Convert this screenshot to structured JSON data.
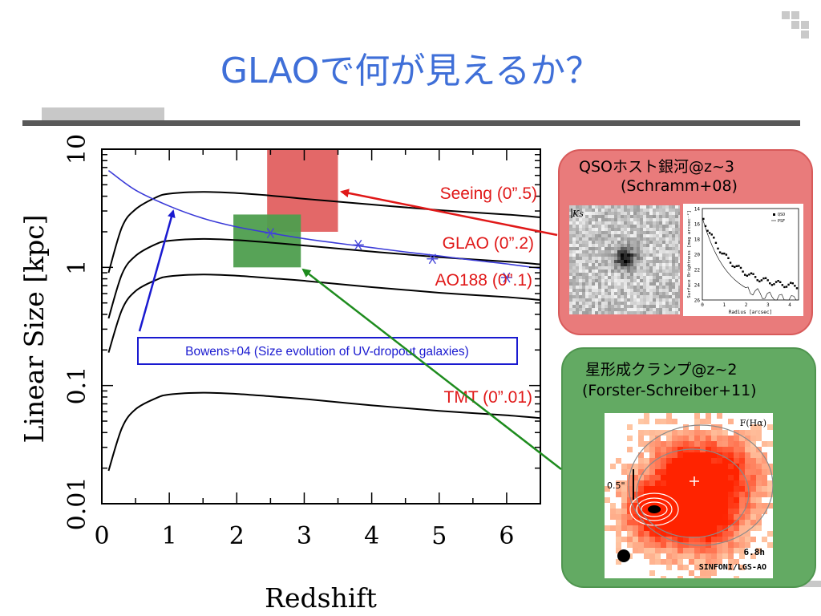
{
  "slide": {
    "title": "GLAOで何が見えるか？"
  },
  "chart_data": {
    "type": "line",
    "xlabel": "Redshift",
    "ylabel": "Linear Size [kpc]",
    "yscale": "log",
    "xlim": [
      0,
      6.5
    ],
    "ylim": [
      0.01,
      10
    ],
    "x_ticks": [
      "0",
      "1",
      "2",
      "3",
      "4",
      "5",
      "6"
    ],
    "y_ticks": [
      "0.01",
      "0.1",
      "1",
      "10"
    ],
    "series": [
      {
        "name": "Seeing (0”.5)",
        "x": [
          0.1,
          0.3,
          0.5,
          0.8,
          1.0,
          1.5,
          2.0,
          2.5,
          3.0,
          4.0,
          5.0,
          6.0,
          6.5
        ],
        "values": [
          0.9,
          2.2,
          3.1,
          3.9,
          4.2,
          4.35,
          4.25,
          4.05,
          3.8,
          3.4,
          3.05,
          2.8,
          2.65
        ]
      },
      {
        "name": "GLAO (0”.2)",
        "x": [
          0.1,
          0.3,
          0.5,
          0.8,
          1.0,
          1.5,
          2.0,
          2.5,
          3.0,
          4.0,
          5.0,
          6.0,
          6.5
        ],
        "values": [
          0.37,
          0.88,
          1.25,
          1.57,
          1.68,
          1.74,
          1.7,
          1.62,
          1.53,
          1.36,
          1.22,
          1.12,
          1.06
        ]
      },
      {
        "name": "AO188 (0”.1)",
        "x": [
          0.1,
          0.3,
          0.5,
          0.8,
          1.0,
          1.5,
          2.0,
          2.5,
          3.0,
          4.0,
          5.0,
          6.0,
          6.5
        ],
        "values": [
          0.19,
          0.44,
          0.63,
          0.78,
          0.84,
          0.87,
          0.85,
          0.81,
          0.77,
          0.68,
          0.61,
          0.56,
          0.53
        ]
      },
      {
        "name": "TMT (0”.01)",
        "x": [
          0.1,
          0.3,
          0.5,
          0.8,
          1.0,
          1.5,
          2.0,
          2.5,
          3.0,
          4.0,
          5.0,
          6.0,
          6.5
        ],
        "values": [
          0.019,
          0.044,
          0.063,
          0.078,
          0.084,
          0.087,
          0.085,
          0.081,
          0.077,
          0.068,
          0.061,
          0.056,
          0.053
        ]
      },
      {
        "name": "Bowens+04 (Size evolution of UV-dropout galaxies)",
        "color": "#3a3ad8",
        "x": [
          0.1,
          0.5,
          1.0,
          1.5,
          2.0,
          2.5,
          3.0,
          3.5,
          4.0,
          4.5,
          5.0,
          5.5,
          6.0,
          6.5
        ],
        "values": [
          6.6,
          4.5,
          3.3,
          2.6,
          2.2,
          1.95,
          1.75,
          1.6,
          1.47,
          1.35,
          1.25,
          1.15,
          1.07,
          0.98
        ]
      }
    ],
    "points": {
      "name": "Bowens+04",
      "x": [
        2.5,
        3.8,
        4.9,
        6.0
      ],
      "values": [
        1.95,
        1.55,
        1.18,
        0.82
      ]
    },
    "boxes": [
      {
        "label": "GLAO/seeing window (red)",
        "color": "#e05858",
        "x": [
          2.45,
          3.5
        ],
        "y": [
          2.0,
          10
        ]
      },
      {
        "label": "GLAO/AO window (green)",
        "color": "#4e9e4e",
        "x": [
          1.95,
          2.95
        ],
        "y": [
          1.0,
          2.8
        ]
      }
    ],
    "annotations": [
      {
        "text": "Seeing (0”.5)",
        "color": "#e01818"
      },
      {
        "text": "GLAO (0”.2)",
        "color": "#e01818"
      },
      {
        "text": "AO188 (0”.1)",
        "color": "#e01818"
      },
      {
        "text": "TMT (0”.01)",
        "color": "#e01818"
      },
      {
        "text": "Bowens+04 (Size evolution of UV-dropout galaxies)",
        "color": "#1a1ad0"
      }
    ],
    "grid": false,
    "legend": "none"
  },
  "panels": {
    "qso": {
      "title_line1": "QSOホスト銀河@z~3",
      "title_line2": "(Schramm+08)",
      "image_label": "Ks",
      "profile": {
        "ylabel": "Surface Brightness [mag arcsec⁻²]",
        "xlabel": "Radius [arcsec]",
        "legend_qso": "QSO",
        "legend_psf": "PSF",
        "y_ticks": [
          "14",
          "16",
          "18",
          "20",
          "22",
          "24",
          "26"
        ],
        "x_ticks": [
          "0",
          "1",
          "2",
          "3",
          "4"
        ]
      }
    },
    "clump": {
      "title_line1": "星形成クランプ@z~2",
      "title_line2": "(Forster-Schreiber+11)",
      "label_filter": "F(Hα)",
      "label_scale": "0.5\"",
      "label_time": "6.8h",
      "label_instrument": "SINFONI/LGS-AO"
    }
  },
  "colors": {
    "title": "#3f6fd8",
    "red_arrow": "#e01818",
    "green_arrow": "#1e8c1e",
    "blue_arrow": "#1a1ad0",
    "bowens_curve": "#3a3ad8"
  }
}
